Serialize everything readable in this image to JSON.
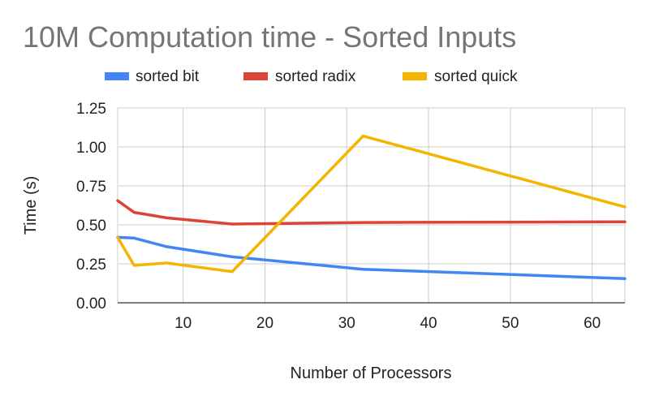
{
  "chart_data": {
    "type": "line",
    "title": "10M Computation time - Sorted Inputs",
    "xlabel": "Number of Processors",
    "ylabel": "Time (s)",
    "xlim": [
      2,
      64
    ],
    "ylim": [
      0,
      1.25
    ],
    "x_ticks": [
      10,
      20,
      30,
      40,
      50,
      60
    ],
    "y_ticks": [
      0,
      0.25,
      0.5,
      0.75,
      1.0,
      1.25
    ],
    "x_tick_labels": [
      "10",
      "20",
      "30",
      "40",
      "50",
      "60"
    ],
    "y_tick_labels": [
      "0.00",
      "0.25",
      "0.50",
      "0.75",
      "1.00",
      "1.25"
    ],
    "grid": true,
    "legend_position": "top",
    "series": [
      {
        "name": "sorted bit",
        "color": "#4285f4",
        "points": [
          [
            2,
            0.42
          ],
          [
            4,
            0.415
          ],
          [
            8,
            0.36
          ],
          [
            16,
            0.295
          ],
          [
            32,
            0.215
          ],
          [
            64,
            0.155
          ]
        ]
      },
      {
        "name": "sorted radix",
        "color": "#db4437",
        "points": [
          [
            2,
            0.655
          ],
          [
            4,
            0.58
          ],
          [
            8,
            0.545
          ],
          [
            16,
            0.505
          ],
          [
            32,
            0.515
          ],
          [
            64,
            0.52
          ]
        ]
      },
      {
        "name": "sorted quick",
        "color": "#f4b400",
        "points": [
          [
            2,
            0.42
          ],
          [
            4,
            0.24
          ],
          [
            8,
            0.255
          ],
          [
            16,
            0.2
          ],
          [
            32,
            1.07
          ],
          [
            64,
            0.615
          ]
        ]
      }
    ]
  }
}
